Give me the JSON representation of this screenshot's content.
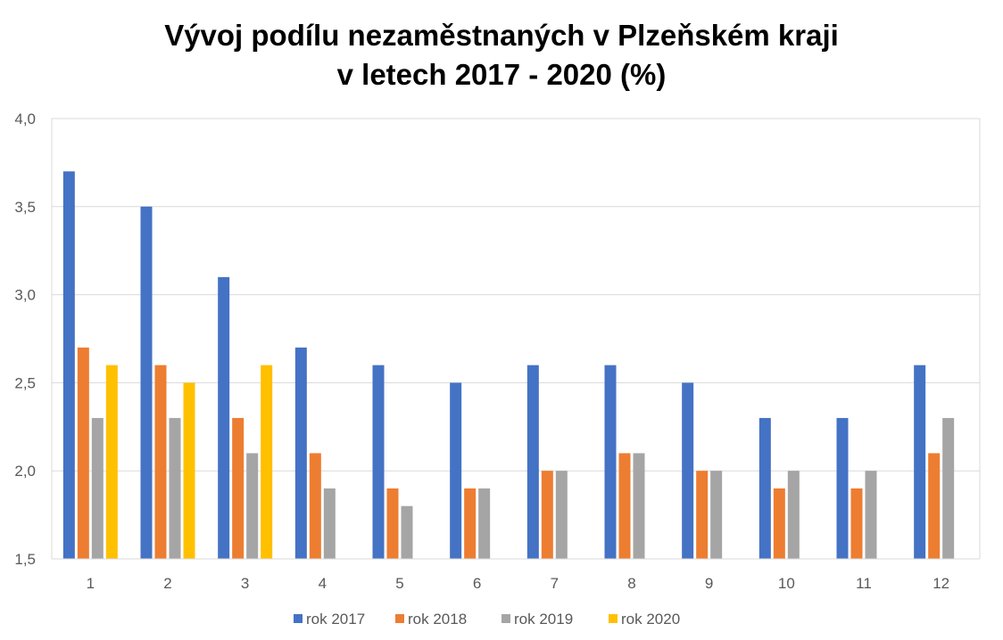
{
  "chart_data": {
    "type": "bar",
    "title_line1": "Vývoj podílu nezaměstnaných v Plzeňském kraji",
    "title_line2": "v letech 2017 - 2020 (%)",
    "xlabel": "",
    "ylabel": "",
    "categories": [
      "1",
      "2",
      "3",
      "4",
      "5",
      "6",
      "7",
      "8",
      "9",
      "10",
      "11",
      "12"
    ],
    "ylim": [
      1.5,
      4.0
    ],
    "yticks": [
      "1,5",
      "2,0",
      "2,5",
      "3,0",
      "3,5",
      "4,0"
    ],
    "ytick_values": [
      1.5,
      2.0,
      2.5,
      3.0,
      3.5,
      4.0
    ],
    "grid": true,
    "legend_position": "bottom",
    "series": [
      {
        "name": "rok 2017",
        "color": "#4472C4",
        "values": [
          3.7,
          3.5,
          3.1,
          2.7,
          2.6,
          2.5,
          2.6,
          2.6,
          2.5,
          2.3,
          2.3,
          2.6
        ]
      },
      {
        "name": "rok 2018",
        "color": "#ED7D31",
        "values": [
          2.7,
          2.6,
          2.3,
          2.1,
          1.9,
          1.9,
          2.0,
          2.1,
          2.0,
          1.9,
          1.9,
          2.1
        ]
      },
      {
        "name": "rok 2019",
        "color": "#A5A5A5",
        "values": [
          2.3,
          2.3,
          2.1,
          1.9,
          1.8,
          1.9,
          2.0,
          2.1,
          2.0,
          2.0,
          2.0,
          2.3
        ]
      },
      {
        "name": "rok 2020",
        "color": "#FFC000",
        "values": [
          2.6,
          2.5,
          2.6,
          null,
          null,
          null,
          null,
          null,
          null,
          null,
          null,
          null
        ]
      }
    ]
  }
}
